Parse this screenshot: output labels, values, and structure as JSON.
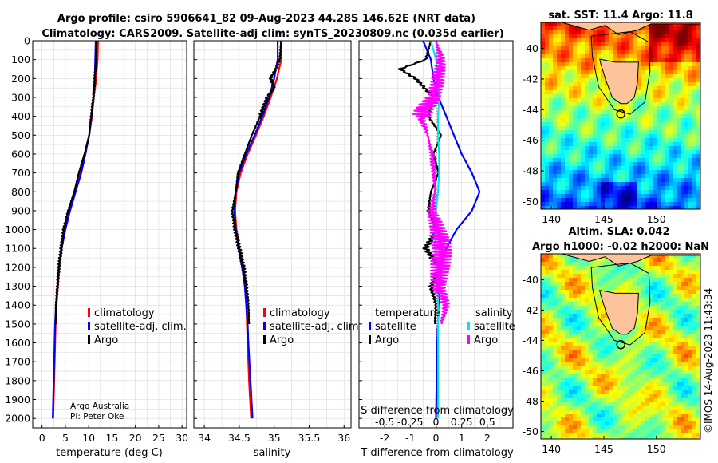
{
  "header": {
    "title_line1": "Argo profile: csiro 5906641_82 09-Aug-2023 44.28S 146.62E (NRT data)",
    "title_line2": "Climatology: CARS2009. Satellite-adj clim: synTS_20230809.nc (0.035d earlier)"
  },
  "credits": {
    "line1": "Argo Australia",
    "line2": "PI: Peter Oke"
  },
  "stamp": "©IMOS 14-Aug-2023 11:43:34",
  "colors": {
    "climatology": "#ff0000",
    "satellite": "#0000ff",
    "argo": "#000000",
    "magenta": "#ff00ff",
    "cyan": "#00e5ee",
    "land": "#fdc49c"
  },
  "chart_data": [
    {
      "type": "line",
      "xlabel": "temperature (deg C)",
      "ylabel": "",
      "xlim": [
        -2,
        31
      ],
      "ylim": [
        2050,
        0
      ],
      "xticks": [
        "0",
        "5",
        "10",
        "15",
        "20",
        "25",
        "30"
      ],
      "xtick_values": [
        0,
        5,
        10,
        15,
        20,
        25,
        30
      ],
      "yticks": [
        "0",
        "100",
        "200",
        "300",
        "400",
        "500",
        "600",
        "700",
        "800",
        "900",
        "1000",
        "1100",
        "1200",
        "1300",
        "1400",
        "1500",
        "1600",
        "1700",
        "1800",
        "1900",
        "2000"
      ],
      "ytick_values": [
        0,
        100,
        200,
        300,
        400,
        500,
        600,
        700,
        800,
        900,
        1000,
        1100,
        1200,
        1300,
        1400,
        1500,
        1600,
        1700,
        1800,
        1900,
        2000
      ],
      "legend": [
        "climatology",
        "satellite-adj. clim.",
        "Argo"
      ],
      "legend_position": "center-right",
      "series": [
        {
          "name": "climatology",
          "color": "#ff0000",
          "depth": [
            0,
            100,
            200,
            300,
            400,
            500,
            600,
            700,
            800,
            900,
            1000,
            1100,
            1200,
            1300,
            1400,
            1500,
            1600,
            1800,
            2000
          ],
          "values": [
            12.0,
            11.9,
            11.6,
            11.1,
            10.7,
            10.1,
            9.2,
            8.2,
            7.0,
            5.8,
            4.9,
            4.2,
            3.7,
            3.4,
            3.1,
            2.9,
            2.8,
            2.6,
            2.4
          ]
        },
        {
          "name": "satellite-adj. clim.",
          "color": "#0000ff",
          "depth": [
            0,
            100,
            200,
            300,
            400,
            500,
            600,
            700,
            800,
            900,
            1000,
            1100,
            1200,
            1300,
            1400,
            1500,
            1600,
            1800,
            2000
          ],
          "values": [
            11.5,
            11.4,
            11.3,
            11.0,
            10.6,
            10.1,
            9.3,
            8.4,
            7.2,
            6.0,
            5.0,
            4.2,
            3.6,
            3.3,
            3.0,
            2.8,
            2.7,
            2.5,
            2.3
          ]
        },
        {
          "name": "Argo",
          "color": "#000000",
          "depth": [
            0,
            100,
            200,
            300,
            400,
            500,
            600,
            700,
            800,
            900,
            1000,
            1100,
            1200,
            1300,
            1400,
            1500
          ],
          "values": [
            11.7,
            11.6,
            11.3,
            11.0,
            10.5,
            10.1,
            9.1,
            7.9,
            6.9,
            5.6,
            4.6,
            4.1,
            3.6,
            3.3,
            3.0,
            2.9
          ]
        }
      ]
    },
    {
      "type": "line",
      "xlabel": "salinity",
      "ylabel": "",
      "xlim": [
        33.85,
        36.1
      ],
      "ylim": [
        2050,
        0
      ],
      "xticks": [
        "34",
        "34.5",
        "35",
        "35.5",
        "36"
      ],
      "xtick_values": [
        34,
        34.5,
        35,
        35.5,
        36
      ],
      "legend": [
        "climatology",
        "satellite-adj. clim.",
        "Argo"
      ],
      "legend_position": "center-right",
      "series": [
        {
          "name": "climatology",
          "color": "#ff0000",
          "depth": [
            0,
            100,
            200,
            300,
            400,
            500,
            600,
            700,
            800,
            900,
            1000,
            1100,
            1200,
            1300,
            1400,
            1500,
            1600,
            1800,
            2000
          ],
          "values": [
            35.1,
            35.1,
            35.04,
            34.95,
            34.85,
            34.74,
            34.62,
            34.52,
            34.46,
            34.44,
            34.46,
            34.5,
            34.55,
            34.58,
            34.6,
            34.61,
            34.62,
            34.64,
            34.67
          ]
        },
        {
          "name": "satellite-adj. clim.",
          "color": "#0000ff",
          "depth": [
            0,
            100,
            200,
            300,
            400,
            500,
            600,
            700,
            800,
            900,
            1000,
            1100,
            1200,
            1300,
            1400,
            1500,
            1600,
            1800,
            2000
          ],
          "values": [
            35.05,
            35.05,
            35.0,
            34.93,
            34.83,
            34.72,
            34.6,
            34.5,
            34.45,
            34.43,
            34.45,
            34.49,
            34.54,
            34.58,
            34.6,
            34.62,
            34.63,
            34.66,
            34.69
          ]
        },
        {
          "name": "Argo",
          "color": "#000000",
          "depth": [
            0,
            100,
            150,
            200,
            250,
            300,
            350,
            400,
            500,
            600,
            700,
            800,
            900,
            1000,
            1100,
            1200,
            1300,
            1400,
            1500
          ],
          "values": [
            35.1,
            35.08,
            35.02,
            34.95,
            35.0,
            34.9,
            34.85,
            34.8,
            34.68,
            34.58,
            34.48,
            34.45,
            34.4,
            34.44,
            34.5,
            34.56,
            34.6,
            34.63,
            34.64
          ]
        }
      ]
    },
    {
      "type": "line",
      "xlabel": "T difference from climatology",
      "xlabel_top": "S difference from climatology",
      "xlim": [
        -3,
        3
      ],
      "ylim": [
        2050,
        0
      ],
      "xticks": [
        "-2",
        "-1",
        "0",
        "1",
        "2"
      ],
      "xtick_values": [
        -2,
        -1,
        0,
        1,
        2
      ],
      "xticks_secondary": [
        "-0.5",
        "-0.25",
        "0",
        "0.25",
        "0.5"
      ],
      "xtick_secondary_values": [
        -0.5,
        -0.25,
        0,
        0.25,
        0.5
      ],
      "legend_left_title": "temperature",
      "legend_right_title": "salinity",
      "legend_left": [
        "satellite",
        "Argo"
      ],
      "legend_right": [
        "satellite",
        "Argo"
      ],
      "series": [
        {
          "name": "temperature satellite",
          "color": "#0000ff",
          "depth": [
            0,
            100,
            200,
            300,
            400,
            500,
            600,
            700,
            800,
            900,
            1000,
            1100,
            1200,
            1400,
            1600,
            2000
          ],
          "values": [
            -0.5,
            -0.2,
            -0.1,
            0.1,
            0.4,
            0.7,
            1.0,
            1.4,
            1.7,
            1.4,
            0.8,
            0.4,
            0.2,
            0.1,
            0.05,
            0.0
          ]
        },
        {
          "name": "temperature Argo",
          "color": "#000000",
          "depth": [
            0,
            100,
            150,
            200,
            300,
            400,
            500,
            600,
            700,
            800,
            900,
            1000,
            1100,
            1200,
            1300,
            1400,
            1500
          ],
          "values": [
            -0.2,
            -0.4,
            -1.4,
            -0.8,
            -0.1,
            -0.3,
            0.2,
            -0.1,
            0.1,
            -0.2,
            -0.3,
            0.0,
            -0.4,
            0.1,
            -0.2,
            0.0,
            -0.05
          ]
        },
        {
          "name": "salinity satellite",
          "color": "#00e5ee",
          "depth": [
            0,
            100,
            200,
            300,
            400,
            500,
            600,
            700,
            800,
            900,
            1000,
            1100,
            1200,
            1400,
            1600,
            2000
          ],
          "values": [
            -0.05,
            0.0,
            0.02,
            0.03,
            0.02,
            0.02,
            0.03,
            0.03,
            0.02,
            0.0,
            -0.01,
            -0.01,
            0.01,
            0.02,
            0.02,
            0.02
          ]
        },
        {
          "name": "salinity Argo",
          "color": "#ff00ff",
          "depth": [
            0,
            100,
            200,
            300,
            350,
            400,
            500,
            600,
            700,
            800,
            900,
            1000,
            1100,
            1200,
            1300,
            1400,
            1500
          ],
          "values": [
            0.0,
            0.05,
            0.02,
            -0.02,
            -0.1,
            -0.15,
            -0.08,
            -0.04,
            -0.02,
            -0.01,
            -0.04,
            0.02,
            0.06,
            0.04,
            0.02,
            0.1,
            0.05
          ]
        }
      ]
    },
    {
      "type": "heatmap",
      "title": "sat. SST: 11.4 Argo: 11.8",
      "xticks": [
        "140",
        "145",
        "150"
      ],
      "xtick_values": [
        140,
        145,
        150
      ],
      "yticks": [
        "-40",
        "-42",
        "-44",
        "-46",
        "-48",
        "-50"
      ],
      "ytick_values": [
        -40,
        -42,
        -44,
        -46,
        -48,
        -50
      ],
      "xlim": [
        139,
        154.2
      ],
      "ylim": [
        -50.5,
        -38.3
      ],
      "marker": {
        "lon": 146.62,
        "lat": -44.28
      }
    },
    {
      "type": "heatmap",
      "title": "Altim. SLA: 0.042",
      "subtitle": "Argo h1000: -0.02 h2000: NaN",
      "xticks": [
        "140",
        "145",
        "150"
      ],
      "xtick_values": [
        140,
        145,
        150
      ],
      "yticks": [
        "-40",
        "-42",
        "-44",
        "-46",
        "-48",
        "-50"
      ],
      "ytick_values": [
        -40,
        -42,
        -44,
        -46,
        -48,
        -50
      ],
      "xlim": [
        139,
        154.2
      ],
      "ylim": [
        -50.5,
        -38.3
      ],
      "marker": {
        "lon": 146.62,
        "lat": -44.28
      }
    }
  ]
}
